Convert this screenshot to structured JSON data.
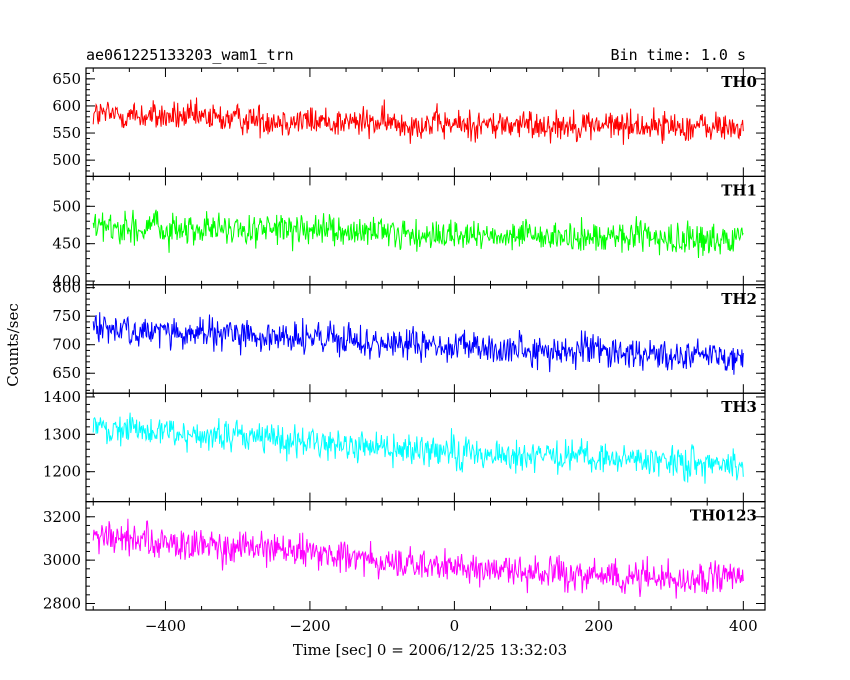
{
  "chart_data": {
    "type": "line",
    "title": "ae061225133203_wam1_trn",
    "subtitle": "Bin time: 1.0 s",
    "xlabel": "Time [sec] 0 = 2006/12/25 13:32:03",
    "ylabel": "Counts/sec",
    "xlim": [
      -510,
      430
    ],
    "x_range": [
      -500,
      400
    ],
    "x_ticks": [
      -400,
      -200,
      0,
      200,
      400
    ],
    "grid": false,
    "series": [
      {
        "name": "TH0",
        "color": "#ff0000",
        "ylim": [
          470,
          670
        ],
        "y_ticks": [
          500,
          550,
          600,
          650
        ],
        "trend": [
          [
            -500,
            585
          ],
          [
            -400,
            580
          ],
          [
            -200,
            572
          ],
          [
            0,
            565
          ],
          [
            200,
            565
          ],
          [
            400,
            560
          ]
        ],
        "noise_amplitude": 30
      },
      {
        "name": "TH1",
        "color": "#00ff00",
        "ylim": [
          395,
          540
        ],
        "y_ticks": [
          400,
          450,
          500
        ],
        "trend": [
          [
            -500,
            472
          ],
          [
            -400,
            470
          ],
          [
            -200,
            467
          ],
          [
            0,
            460
          ],
          [
            200,
            458
          ],
          [
            400,
            455
          ]
        ],
        "noise_amplitude": 22
      },
      {
        "name": "TH2",
        "color": "#0000ff",
        "ylim": [
          615,
          805
        ],
        "y_ticks": [
          650,
          700,
          750,
          800
        ],
        "trend": [
          [
            -500,
            730
          ],
          [
            -400,
            722
          ],
          [
            -200,
            710
          ],
          [
            0,
            695
          ],
          [
            200,
            688
          ],
          [
            400,
            680
          ]
        ],
        "noise_amplitude": 30
      },
      {
        "name": "TH3",
        "color": "#00ffff",
        "ylim": [
          1120,
          1410
        ],
        "y_ticks": [
          1200,
          1300,
          1400
        ],
        "trend": [
          [
            -500,
            1320
          ],
          [
            -400,
            1305
          ],
          [
            -200,
            1280
          ],
          [
            0,
            1250
          ],
          [
            200,
            1235
          ],
          [
            400,
            1220
          ]
        ],
        "noise_amplitude": 45
      },
      {
        "name": "TH0123",
        "color": "#ff00ff",
        "ylim": [
          2770,
          3270
        ],
        "y_ticks": [
          2800,
          3000,
          3200
        ],
        "trend": [
          [
            -500,
            3110
          ],
          [
            -400,
            3080
          ],
          [
            -200,
            3030
          ],
          [
            0,
            2960
          ],
          [
            200,
            2930
          ],
          [
            400,
            2910
          ]
        ],
        "noise_amplitude": 80
      }
    ]
  }
}
